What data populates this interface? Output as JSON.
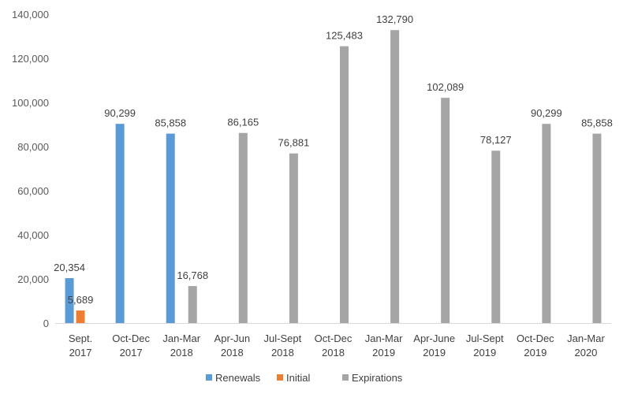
{
  "chart_data": {
    "type": "bar",
    "categories": [
      [
        "Sept.",
        "2017"
      ],
      [
        "Oct-Dec",
        "2017"
      ],
      [
        "Jan-Mar",
        "2018"
      ],
      [
        "Apr-Jun",
        "2018"
      ],
      [
        "Jul-Sept",
        "2018"
      ],
      [
        "Oct-Dec",
        "2018"
      ],
      [
        "Jan-Mar",
        "2019"
      ],
      [
        "Apr-June",
        "2019"
      ],
      [
        "Jul-Sept",
        "2019"
      ],
      [
        "Oct-Dec",
        "2019"
      ],
      [
        "Jan-Mar",
        "2020"
      ]
    ],
    "series": [
      {
        "name": "Renewals",
        "color": "#5B9BD5",
        "values": [
          20354,
          90299,
          85858,
          null,
          null,
          null,
          null,
          null,
          null,
          null,
          null
        ],
        "labels": [
          "20,354",
          "90,299",
          "85,858",
          null,
          null,
          null,
          null,
          null,
          null,
          null,
          null
        ]
      },
      {
        "name": "Initial",
        "color": "#ED7D31",
        "values": [
          5689,
          null,
          null,
          null,
          null,
          null,
          null,
          null,
          null,
          null,
          null
        ],
        "labels": [
          "5,689",
          null,
          null,
          null,
          null,
          null,
          null,
          null,
          null,
          null,
          null
        ]
      },
      {
        "name": "Expirations",
        "color": "#A5A5A5",
        "values": [
          null,
          null,
          16768,
          86165,
          76881,
          125483,
          132790,
          102089,
          78127,
          90299,
          85858
        ],
        "labels": [
          null,
          null,
          "16,768",
          "86,165",
          "76,881",
          "125,483",
          "132,790",
          "102,089",
          "78,127",
          "90,299",
          "85,858"
        ]
      }
    ],
    "ylim": [
      0,
      140000
    ],
    "yticks": [
      0,
      20000,
      40000,
      60000,
      80000,
      100000,
      120000,
      140000
    ],
    "ytick_labels": [
      "0",
      "20,000",
      "40,000",
      "60,000",
      "80,000",
      "100,000",
      "120,000",
      "140,000"
    ],
    "title": "",
    "xlabel": "",
    "ylabel": "",
    "grid": false,
    "legend": "bottom-center"
  }
}
